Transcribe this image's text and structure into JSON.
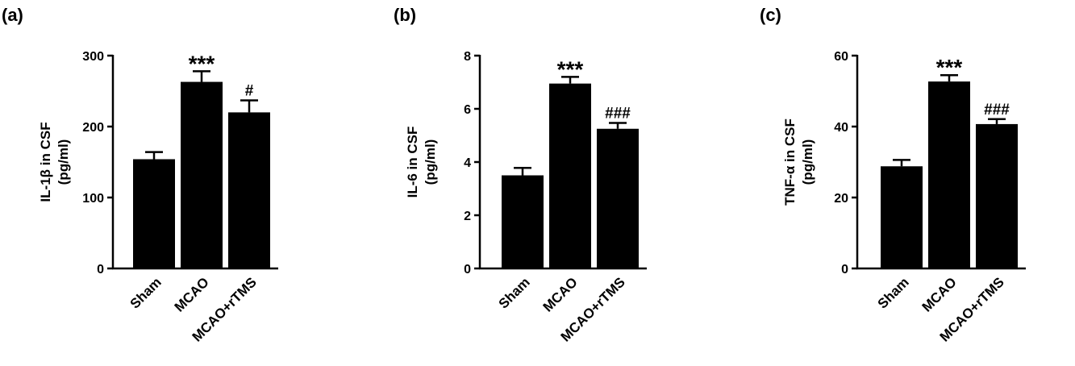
{
  "chart_data": [
    {
      "type": "bar",
      "panel_label": "(a)",
      "categories": [
        "Sham",
        "MCAO",
        "MCAO+rTMS"
      ],
      "values": [
        154,
        263,
        220
      ],
      "errors": [
        10,
        15,
        17
      ],
      "annotations": [
        "",
        "***",
        "#"
      ],
      "ylabel_line1": "IL-1β in CSF",
      "ylabel_line2": "(pg/ml)",
      "ylim": [
        0,
        300
      ],
      "yticks": [
        0,
        100,
        200,
        300
      ],
      "bar_color": "#000000"
    },
    {
      "type": "bar",
      "panel_label": "(b)",
      "categories": [
        "Sham",
        "MCAO",
        "MCAO+rTMS"
      ],
      "values": [
        3.5,
        6.95,
        5.25
      ],
      "errors": [
        0.28,
        0.25,
        0.22
      ],
      "annotations": [
        "",
        "***",
        "###"
      ],
      "ylabel_line1": "IL-6 in CSF",
      "ylabel_line2": "(pg/ml)",
      "ylim": [
        0,
        8
      ],
      "yticks": [
        0,
        2,
        4,
        6,
        8
      ],
      "bar_color": "#000000"
    },
    {
      "type": "bar",
      "panel_label": "(c)",
      "categories": [
        "Sham",
        "MCAO",
        "MCAO+rTMS"
      ],
      "values": [
        28.8,
        52.7,
        40.7
      ],
      "errors": [
        1.8,
        1.8,
        1.4
      ],
      "annotations": [
        "",
        "***",
        "###"
      ],
      "ylabel_line1": "TNF-α in CSF",
      "ylabel_line2": "(pg/ml)",
      "ylim": [
        0,
        60
      ],
      "yticks": [
        0,
        20,
        40,
        60
      ],
      "bar_color": "#000000"
    }
  ]
}
